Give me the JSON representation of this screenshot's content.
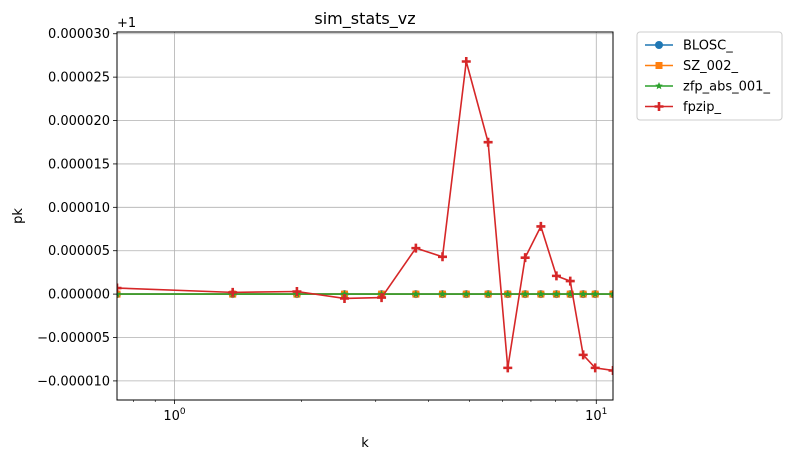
{
  "chart_data": {
    "type": "line",
    "title": "sim_stats_vz",
    "xlabel": "k",
    "ylabel": "pk",
    "offset_text": "+1",
    "xscale": "log",
    "xlim": [
      0.7305,
      10.956
    ],
    "ylim": [
      -1.22e-05,
      3.02e-05
    ],
    "grid": true,
    "legend_position": "outside-top-right",
    "x_ticks": [
      {
        "value": 1,
        "base": "10",
        "exp": "0"
      },
      {
        "value": 10,
        "base": "10",
        "exp": "1"
      }
    ],
    "y_ticks": [
      {
        "value": -1e-05,
        "label": "−0.000010"
      },
      {
        "value": -5e-06,
        "label": "−0.000005"
      },
      {
        "value": 0,
        "label": "0.000000"
      },
      {
        "value": 5e-06,
        "label": "0.000005"
      },
      {
        "value": 1e-05,
        "label": "0.000010"
      },
      {
        "value": 1.5e-05,
        "label": "0.000015"
      },
      {
        "value": 2e-05,
        "label": "0.000020"
      },
      {
        "value": 2.5e-05,
        "label": "0.000025"
      },
      {
        "value": 3e-05,
        "label": "0.000030"
      }
    ],
    "x": [
      0.7305,
      1.3739,
      1.9508,
      2.5295,
      3.0967,
      3.7348,
      4.3192,
      4.9174,
      5.5406,
      6.1679,
      6.7817,
      7.3899,
      8.0451,
      8.6753,
      9.3092,
      9.9419,
      10.956
    ],
    "series": [
      {
        "name": "BLOSC_",
        "color": "#1f77b4",
        "marker": "circle",
        "values": [
          0,
          0,
          0,
          0,
          0,
          0,
          0,
          0,
          0,
          0,
          0,
          0,
          0,
          0,
          0,
          0,
          0
        ]
      },
      {
        "name": "SZ_002_",
        "color": "#ff7f0e",
        "marker": "square",
        "values": [
          0,
          0,
          0,
          0,
          0,
          0,
          0,
          0,
          0,
          0,
          0,
          0,
          0,
          0,
          0,
          0,
          0
        ]
      },
      {
        "name": "zfp_abs_001_",
        "color": "#2ca02c",
        "marker": "star",
        "values": [
          0,
          0,
          0,
          0,
          0,
          0,
          0,
          0,
          0,
          0,
          0,
          0,
          0,
          0,
          0,
          0,
          0
        ]
      },
      {
        "name": "fpzip_",
        "color": "#d62728",
        "marker": "plus",
        "values": [
          7e-07,
          2e-07,
          3e-07,
          -5e-07,
          -4e-07,
          5.3e-06,
          4.3e-06,
          2.68e-05,
          1.75e-05,
          -8.5e-06,
          4.2e-06,
          7.8e-06,
          2.1e-06,
          1.5e-06,
          -7e-06,
          -8.5e-06,
          -8.8e-06
        ]
      }
    ]
  }
}
